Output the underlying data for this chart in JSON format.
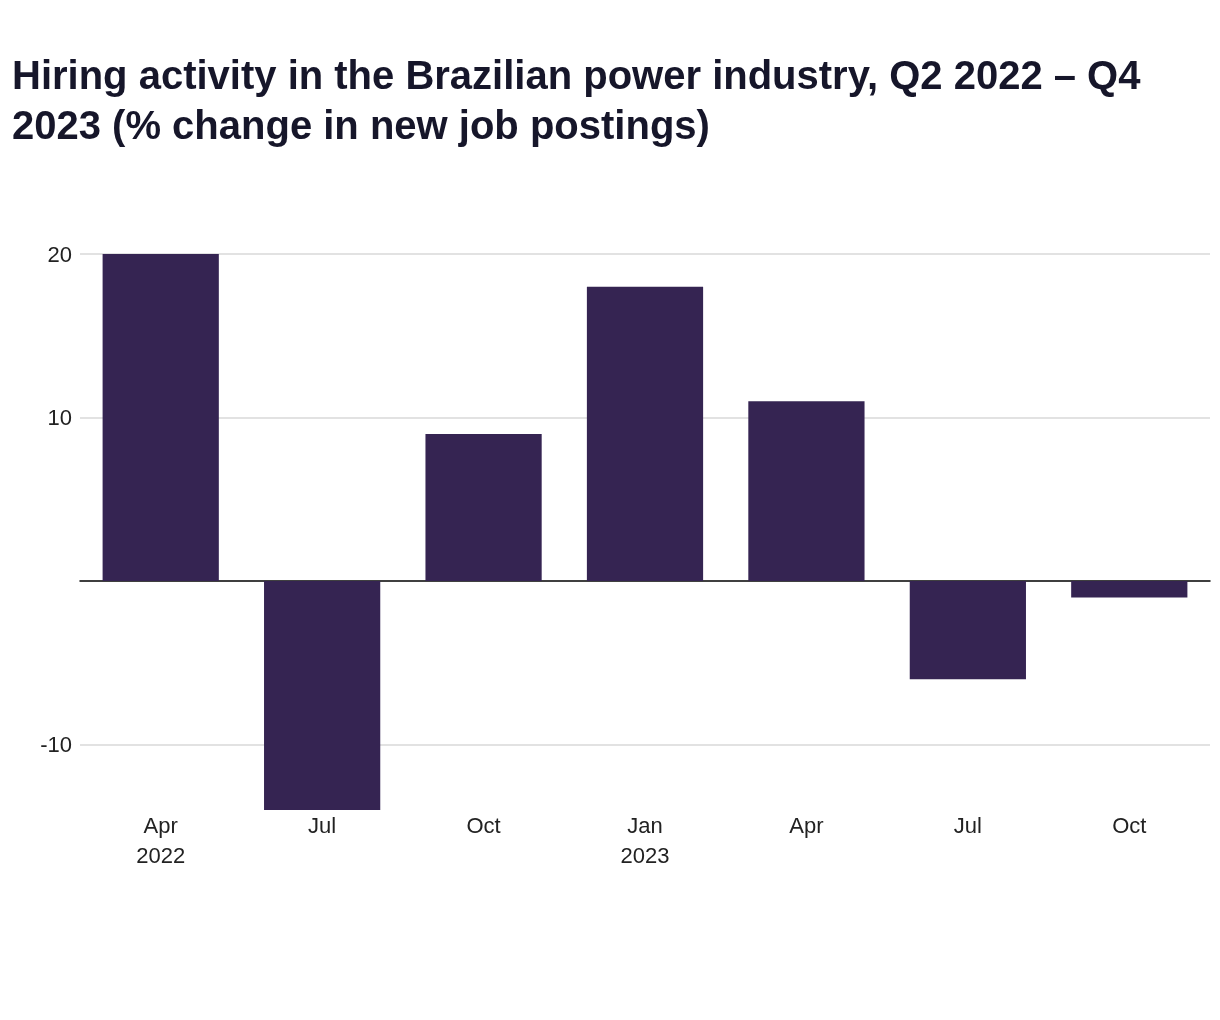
{
  "chart_data": {
    "type": "bar",
    "title": "Hiring activity in the Brazilian power industry, Q2 2022 – Q4 2023 (% change in new job postings)",
    "categories": [
      "Apr\n2022",
      "Jul",
      "Oct",
      "Jan\n2023",
      "Apr",
      "Jul",
      "Oct"
    ],
    "values": [
      20,
      -14,
      9,
      18,
      11,
      -6,
      -1
    ],
    "color": "#352452",
    "ylim": [
      -14,
      20
    ],
    "yticks": [
      -10,
      10,
      20
    ],
    "grid": "y"
  }
}
